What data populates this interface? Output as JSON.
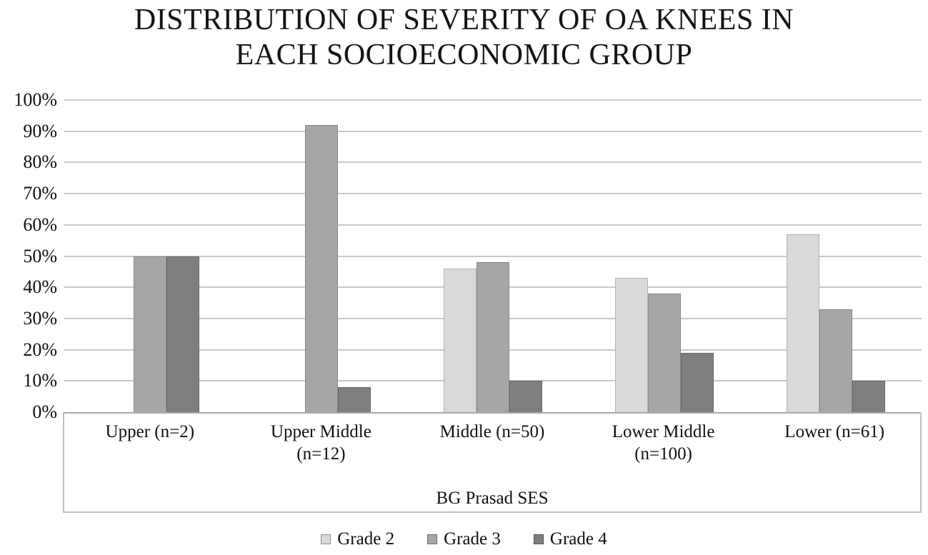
{
  "title_lines": [
    "DISTRIBUTION OF SEVERITY OF OA KNEES IN",
    "EACH SOCIOECONOMIC GROUP"
  ],
  "chart_data": {
    "type": "bar",
    "title": "DISTRIBUTION OF SEVERITY OF OA KNEES IN EACH SOCIOECONOMIC GROUP",
    "xlabel": "BG Prasad SES",
    "ylabel": "",
    "ylim": [
      0,
      100
    ],
    "grid": true,
    "legend_position": "bottom",
    "yticks": [
      {
        "value": 0,
        "label": "0%"
      },
      {
        "value": 10,
        "label": "10%"
      },
      {
        "value": 20,
        "label": "20%"
      },
      {
        "value": 30,
        "label": "30%"
      },
      {
        "value": 40,
        "label": "40%"
      },
      {
        "value": 50,
        "label": "50%"
      },
      {
        "value": 60,
        "label": "60%"
      },
      {
        "value": 70,
        "label": "70%"
      },
      {
        "value": 80,
        "label": "80%"
      },
      {
        "value": 90,
        "label": "90%"
      },
      {
        "value": 100,
        "label": "100%"
      }
    ],
    "categories": [
      "Upper (n=2)",
      "Upper Middle (n=12)",
      "Middle (n=50)",
      "Lower Middle (n=100)",
      "Lower (n=61)"
    ],
    "series": [
      {
        "name": "Grade 2",
        "color": "#d9d9d9",
        "values": [
          0,
          0,
          46,
          43,
          57
        ]
      },
      {
        "name": "Grade 3",
        "color": "#a6a6a6",
        "values": [
          50,
          92,
          48,
          38,
          33
        ]
      },
      {
        "name": "Grade 4",
        "color": "#7f7f7f",
        "values": [
          50,
          8,
          10,
          19,
          10
        ]
      }
    ]
  }
}
